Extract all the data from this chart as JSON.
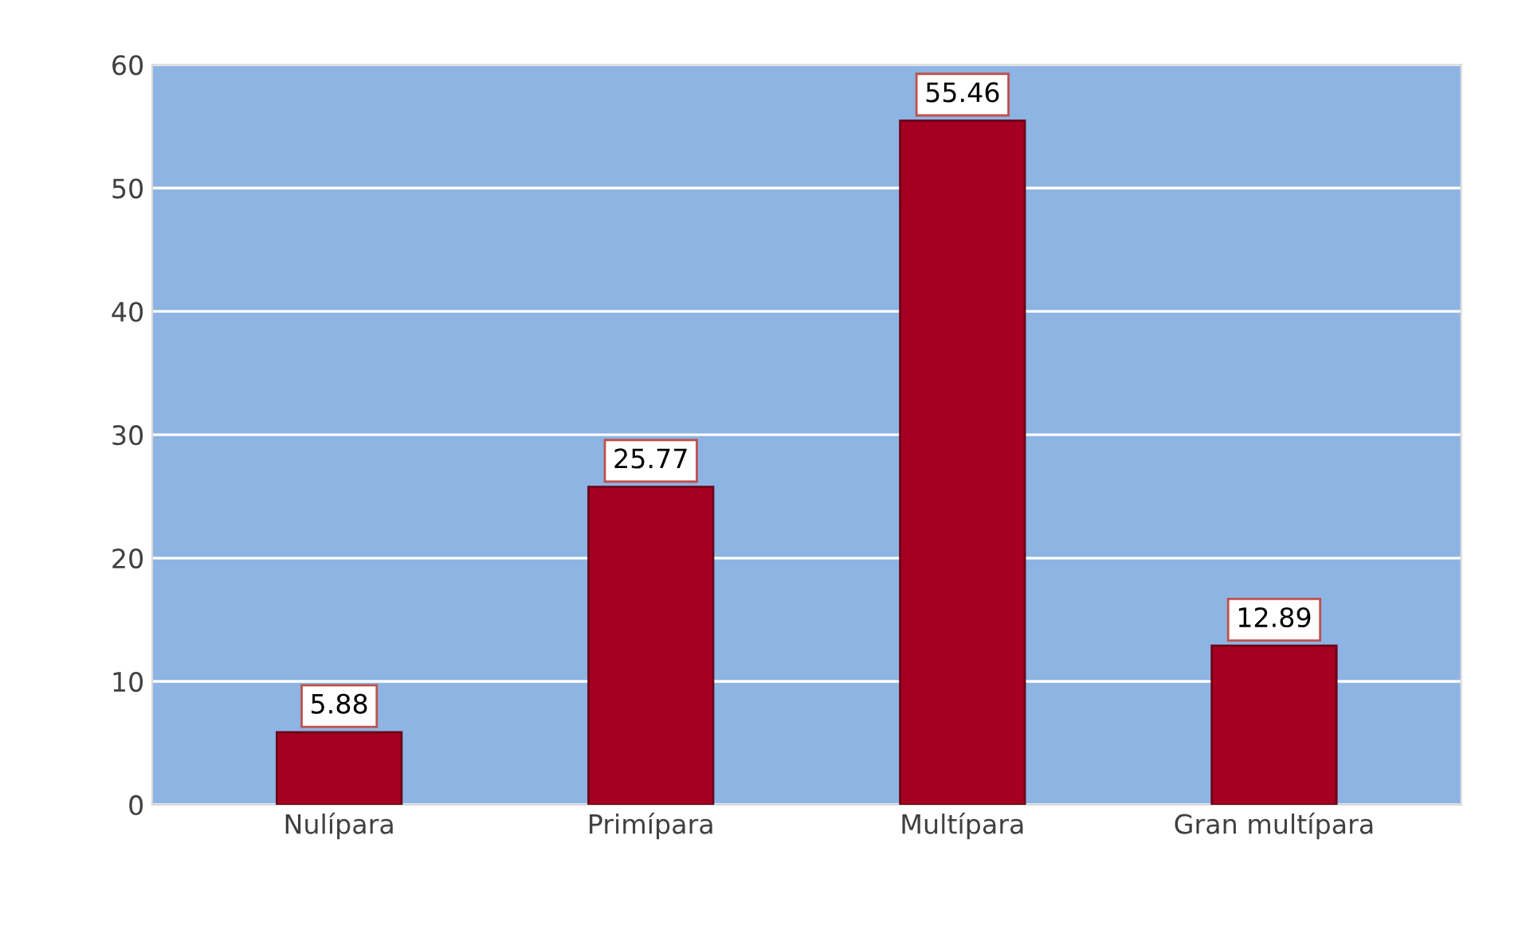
{
  "chart_data": {
    "type": "bar",
    "categories": [
      "Nulípara",
      "Primípara",
      "Multípara",
      "Gran multípara"
    ],
    "values": [
      5.88,
      25.77,
      55.46,
      12.89
    ],
    "color": "#a50021",
    "ylim": [
      0,
      60
    ],
    "yticks": [
      0,
      10,
      20,
      30,
      40,
      50,
      60
    ],
    "grid": "y",
    "data_labels": true
  }
}
